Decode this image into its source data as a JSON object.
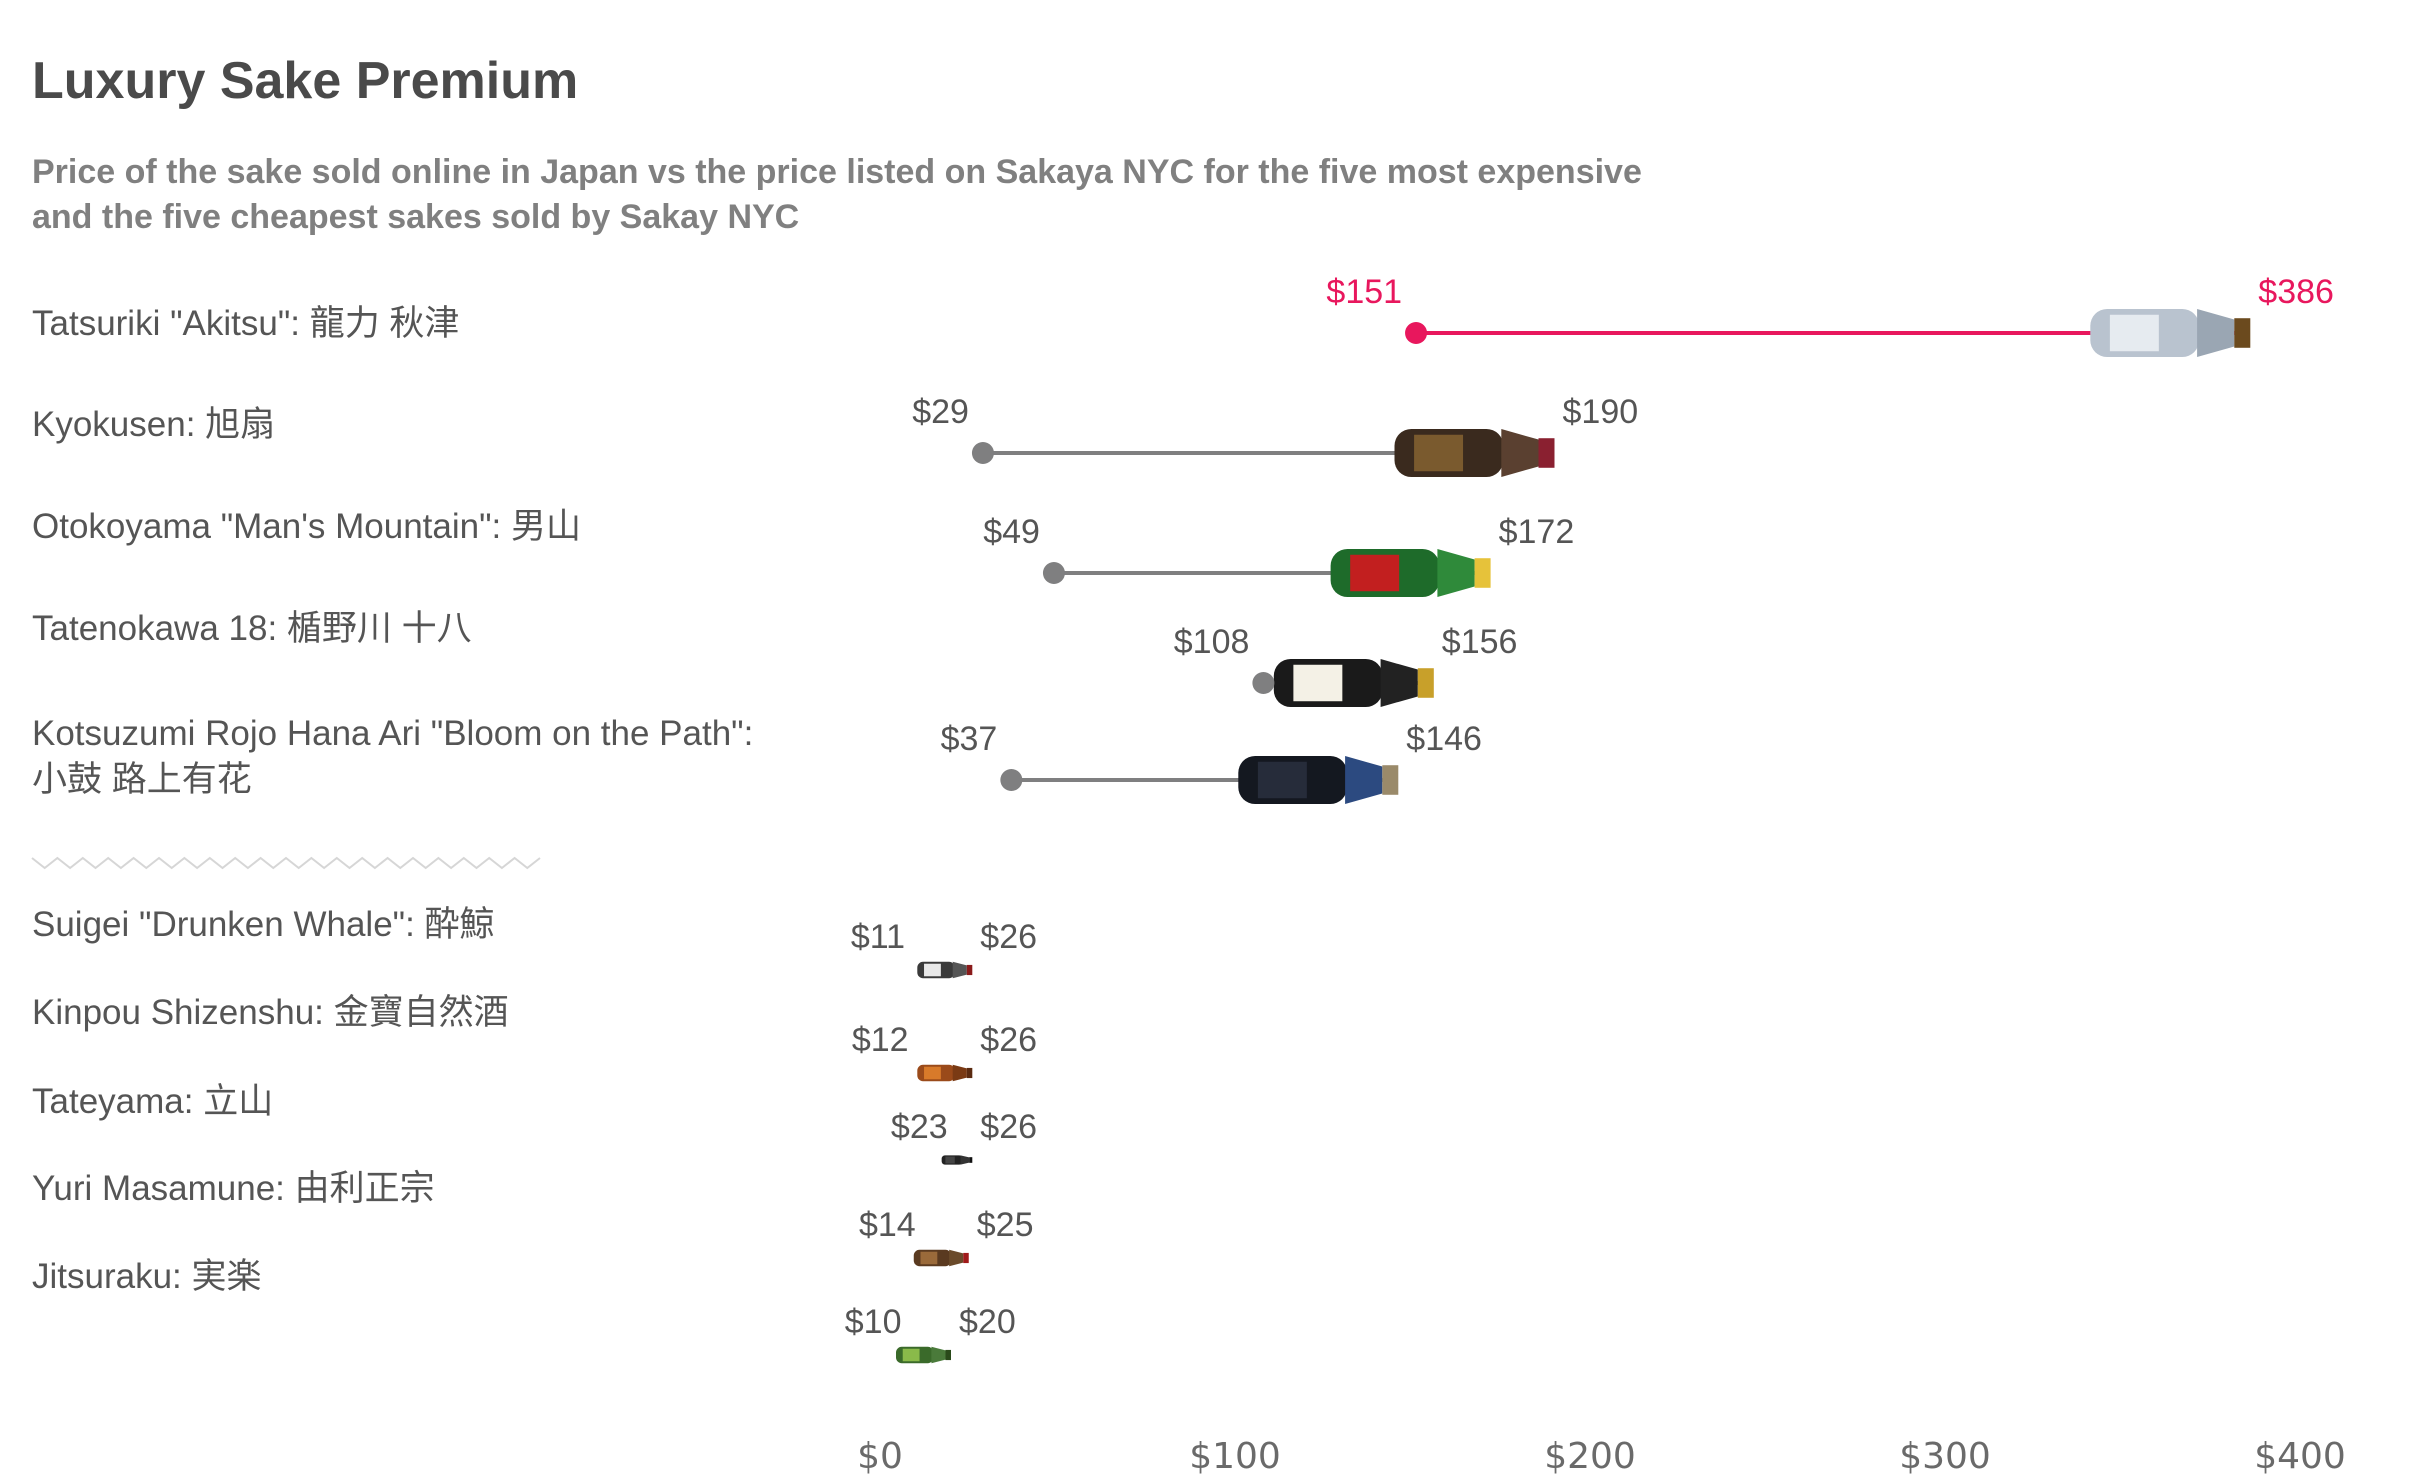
{
  "chart_data": {
    "type": "dumbbell",
    "title": "Luxury Sake Premium",
    "subtitle_lines": [
      "Price of the sake sold online in Japan vs the price listed on Sakaya NYC for the five most expensive",
      "and the five cheapest sakes sold by Sakay NYC"
    ],
    "x_ticks": [
      {
        "value": 0,
        "label": "$0"
      },
      {
        "value": 100,
        "label": "$100"
      },
      {
        "value": 200,
        "label": "$200"
      },
      {
        "value": 300,
        "label": "$300"
      },
      {
        "value": 400,
        "label": "$400"
      }
    ],
    "xlim": [
      0,
      400
    ],
    "grid": false,
    "colors": {
      "highlight": "#e8175d",
      "normal": "#7f7f80",
      "separator": "#d6d6d6",
      "text": "#555555"
    },
    "groups": [
      {
        "name": "most_expensive",
        "items": [
          {
            "label_lines": [
              "Tatsuriki \"Akitsu\": 龍力 秋津"
            ],
            "japan_price": 151,
            "japan_label": "$151",
            "nyc_price": 386,
            "nyc_label": "$386",
            "highlight": true,
            "bottle": {
              "body": "#b9c3cf",
              "label": "#e6ebf0",
              "cap": "#6b4a1e",
              "neck": "#9aa6b3"
            }
          },
          {
            "label_lines": [
              "Kyokusen: 旭扇"
            ],
            "japan_price": 29,
            "japan_label": "$29",
            "nyc_price": 190,
            "nyc_label": "$190",
            "highlight": false,
            "bottle": {
              "body": "#3a2a1e",
              "label": "#7a5a2e",
              "cap": "#8a2030",
              "neck": "#5a4030"
            }
          },
          {
            "label_lines": [
              "Otokoyama  \"Man's Mountain\": 男山"
            ],
            "japan_price": 49,
            "japan_label": "$49",
            "nyc_price": 172,
            "nyc_label": "$172",
            "highlight": false,
            "bottle": {
              "body": "#1e6b2a",
              "label": "#c21f1f",
              "cap": "#e6c23a",
              "neck": "#2f8a3a"
            }
          },
          {
            "label_lines": [
              "Tatenokawa 18: 楯野川 十八"
            ],
            "japan_price": 108,
            "japan_label": "$108",
            "nyc_price": 156,
            "nyc_label": "$156",
            "highlight": false,
            "bottle": {
              "body": "#1a1a1a",
              "label": "#f4f1e6",
              "cap": "#c8a02a",
              "neck": "#222222"
            }
          },
          {
            "label_lines": [
              "Kotsuzumi Rojo Hana Ari \"Bloom on the Path\":",
              "小鼓 路上有花"
            ],
            "japan_price": 37,
            "japan_label": "$37",
            "nyc_price": 146,
            "nyc_label": "$146",
            "highlight": false,
            "bottle": {
              "body": "#141820",
              "label": "#262c3a",
              "cap": "#9a8a6a",
              "neck": "#2c4a80"
            }
          }
        ]
      },
      {
        "name": "cheapest",
        "items": [
          {
            "label_lines": [
              "Suigei \"Drunken Whale\":  酔鯨"
            ],
            "japan_price": 11,
            "japan_label": "$11",
            "nyc_price": 26,
            "nyc_label": "$26",
            "highlight": false,
            "bottle": {
              "body": "#3a3a3a",
              "label": "#e8e8e8",
              "cap": "#8a1a1a",
              "neck": "#555555"
            }
          },
          {
            "label_lines": [
              "Kinpou Shizenshu: 金寶自然酒"
            ],
            "japan_price": 12,
            "japan_label": "$12",
            "nyc_price": 26,
            "nyc_label": "$26",
            "highlight": false,
            "bottle": {
              "body": "#9a4a1a",
              "label": "#d87a2a",
              "cap": "#5a2a10",
              "neck": "#7a3a14"
            }
          },
          {
            "label_lines": [
              "Tateyama: 立山"
            ],
            "japan_price": 23,
            "japan_label": "$23",
            "nyc_price": 26,
            "nyc_label": "$26",
            "highlight": false,
            "bottle": {
              "body": "#222222",
              "label": "#444444",
              "cap": "#111111",
              "neck": "#333333"
            }
          },
          {
            "label_lines": [
              "Yuri Masamune: 由利正宗"
            ],
            "japan_price": 14,
            "japan_label": "$14",
            "nyc_price": 25,
            "nyc_label": "$25",
            "highlight": false,
            "bottle": {
              "body": "#5a3a20",
              "label": "#9a6a3a",
              "cap": "#a01a1a",
              "neck": "#6a4a2a"
            }
          },
          {
            "label_lines": [
              "Jitsuraku: 実楽"
            ],
            "japan_price": 10,
            "japan_label": "$10",
            "nyc_price": 20,
            "nyc_label": "$20",
            "highlight": false,
            "bottle": {
              "body": "#3a6a2a",
              "label": "#8aba4a",
              "cap": "#2a4a1a",
              "neck": "#4a7a3a"
            }
          }
        ]
      }
    ]
  }
}
